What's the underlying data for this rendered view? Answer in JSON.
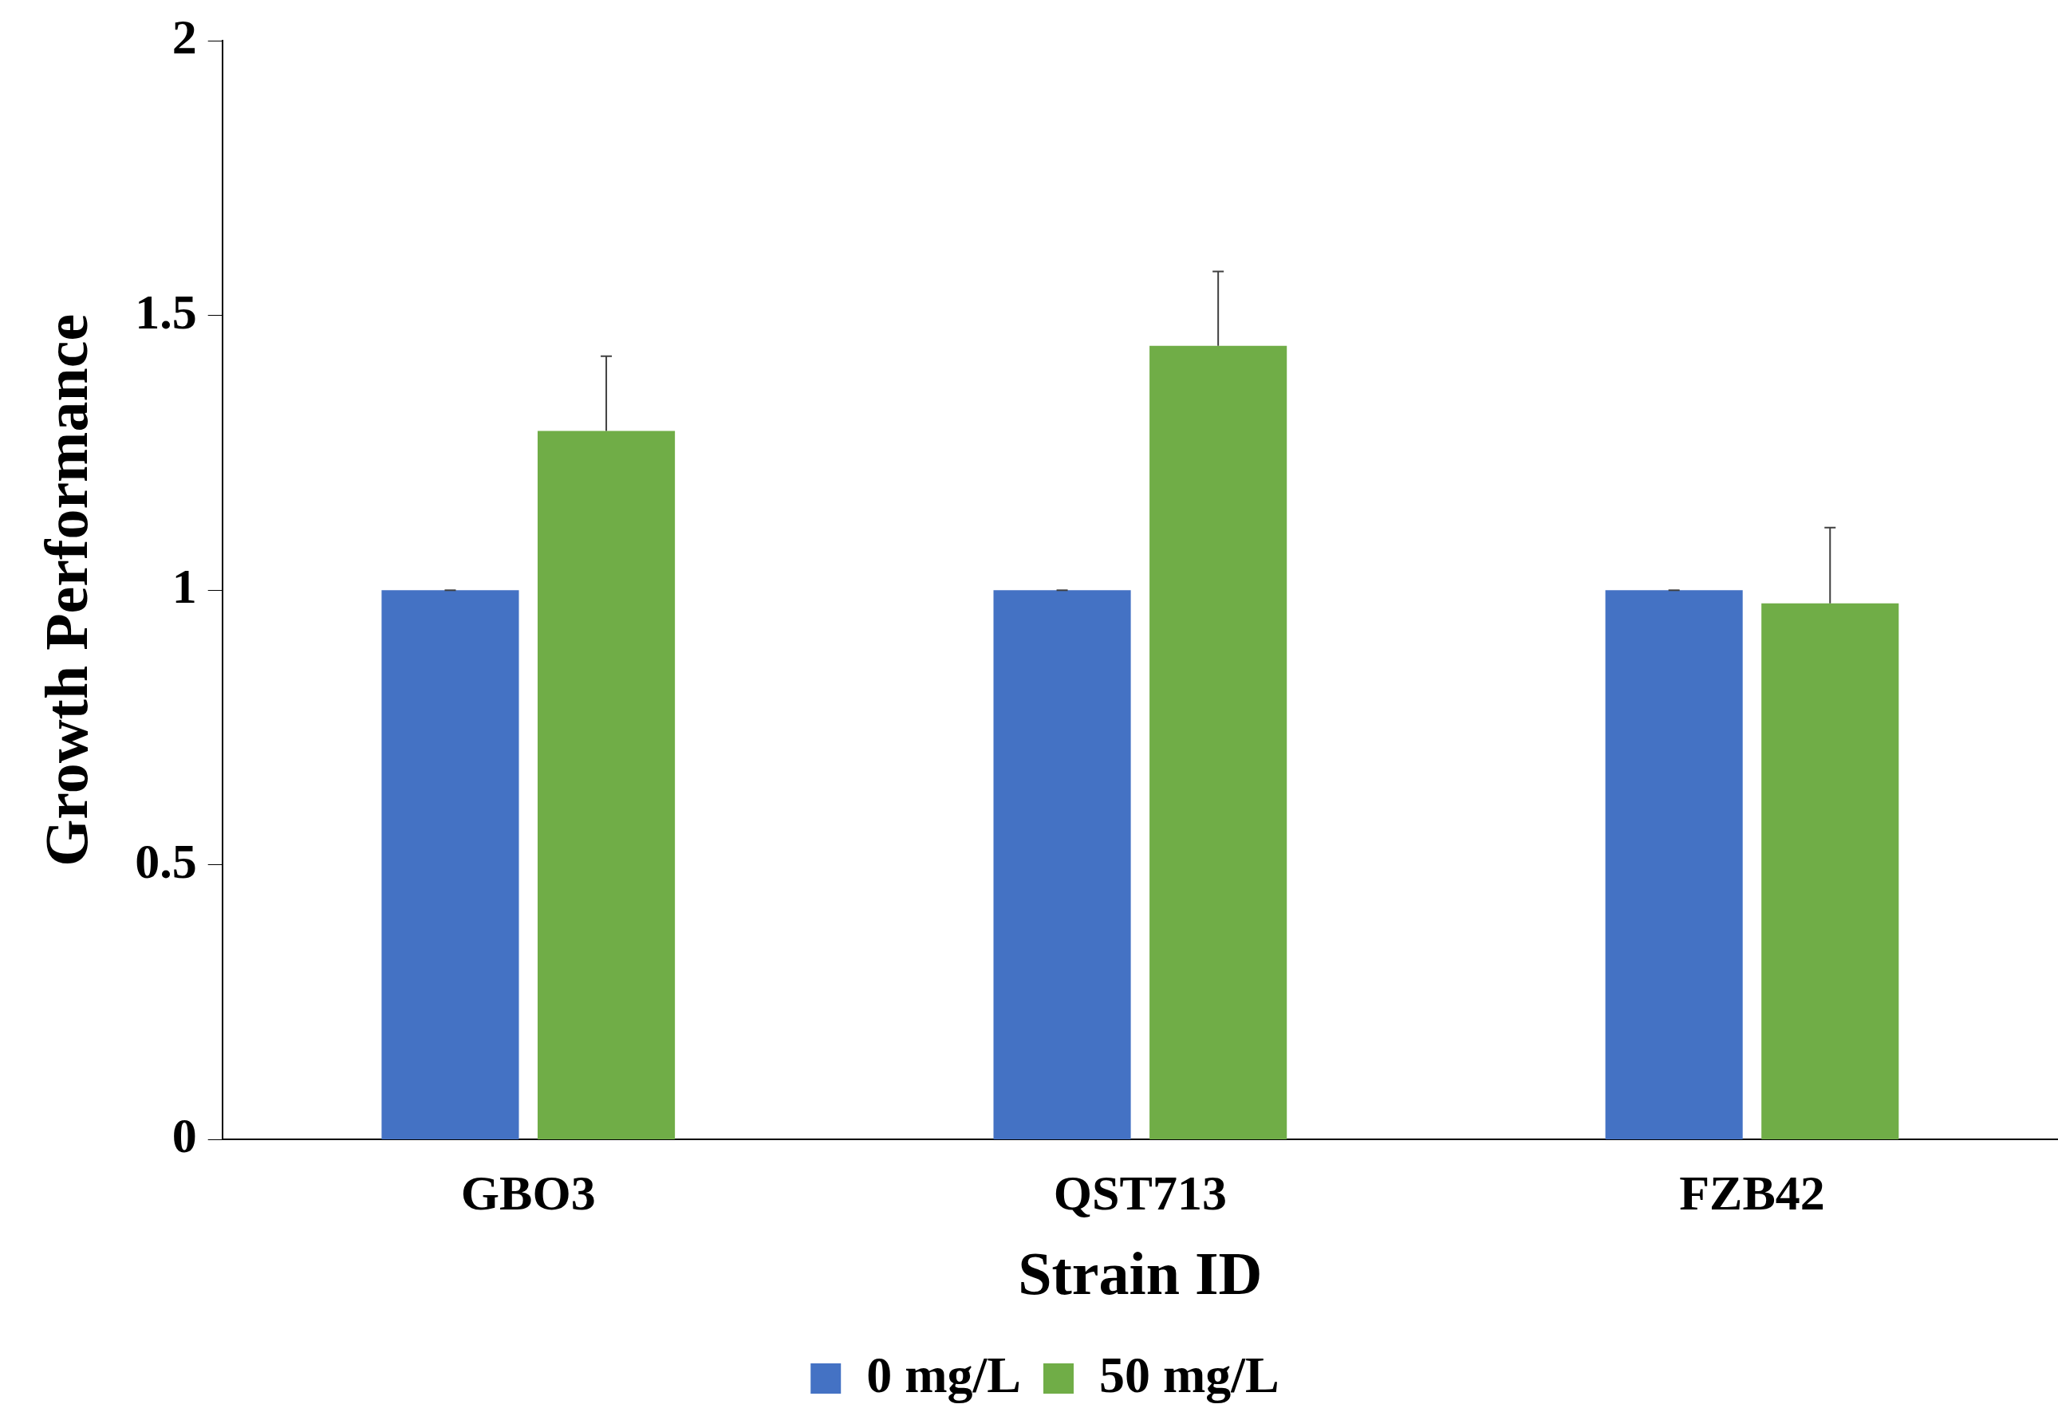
{
  "chart_data": {
    "type": "bar",
    "xlabel": "Strain ID",
    "ylabel": "Growth Performance",
    "categories": [
      "GBO3",
      "QST713",
      "FZB42"
    ],
    "series": [
      {
        "name": "0 mg/L",
        "color": "#4472c4",
        "values": [
          1,
          1,
          1
        ],
        "errors": [
          [
            1,
            1
          ],
          [
            1,
            1
          ],
          [
            1,
            1
          ]
        ]
      },
      {
        "name": "50 mg/L",
        "color": "#70ad47",
        "values": [
          1.29,
          1.445,
          0.976
        ],
        "errors": [
          [
            1.29,
            1.426
          ],
          [
            1.445,
            1.58
          ],
          [
            0.976,
            1.114
          ]
        ]
      }
    ],
    "ylim": [
      0,
      2
    ],
    "yticks": [
      0,
      0.5,
      1,
      1.5,
      2
    ],
    "grid": false,
    "legend": "bottom"
  }
}
